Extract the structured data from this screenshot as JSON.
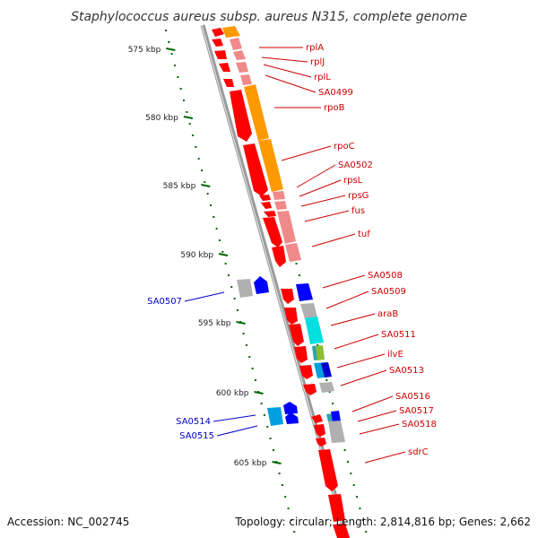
{
  "title": "Staphylococcus aureus subsp. aureus N315, complete genome",
  "ticks": [
    "575 kbp",
    "580 kbp",
    "585 kbp",
    "590 kbp",
    "595 kbp",
    "600 kbp",
    "605 kbp"
  ],
  "forward_labels": [
    "rplA",
    "rplJ",
    "rplL",
    "SA0499",
    "rpoB",
    "rpoC",
    "SA0502",
    "rpsL",
    "rpsG",
    "fus",
    "tuf",
    "SA0508",
    "SA0509",
    "araB",
    "SA0511",
    "ilvE",
    "SA0513",
    "SA0516",
    "SA0517",
    "SA0518",
    "sdrC"
  ],
  "reverse_labels": [
    "SA0507",
    "SA0514",
    "SA0515"
  ],
  "footer": {
    "accession": "Accession: NC_002745",
    "summary": "Topology: circular; Length: 2,814,816 bp; Genes: 2,662"
  },
  "colors": {
    "forward_label": "#cc0000",
    "reverse_label": "#0000cc",
    "cds": "#ff0000",
    "cds_light": "#f08a8a",
    "rrna_orange": "#ff9900",
    "reverse_cds": "#0000ff",
    "backbone": "#808080",
    "tick": "#006600"
  }
}
